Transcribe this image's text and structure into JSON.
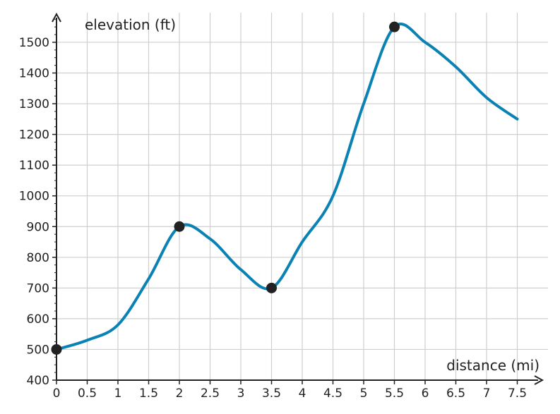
{
  "chart_data": {
    "type": "line",
    "xlabel": "distance (mi)",
    "ylabel": "elevation (ft)",
    "xlim": [
      0,
      7.5
    ],
    "ylim": [
      400,
      1500
    ],
    "x_ticks": [
      "0",
      "0.5",
      "1",
      "1.5",
      "2",
      "2.5",
      "3",
      "3.5",
      "4",
      "4.5",
      "5",
      "5.5",
      "6",
      "6.5",
      "7",
      "7.5"
    ],
    "y_ticks": [
      "400",
      "500",
      "600",
      "700",
      "800",
      "900",
      "1000",
      "1100",
      "1200",
      "1300",
      "1400",
      "1500"
    ],
    "grid": true,
    "series": [
      {
        "color": "#0a82b4",
        "points": [
          {
            "x": 0,
            "y": 500
          },
          {
            "x": 0.5,
            "y": 530
          },
          {
            "x": 1,
            "y": 580
          },
          {
            "x": 1.5,
            "y": 730
          },
          {
            "x": 2,
            "y": 900
          },
          {
            "x": 2.5,
            "y": 860
          },
          {
            "x": 3,
            "y": 760
          },
          {
            "x": 3.5,
            "y": 700
          },
          {
            "x": 4,
            "y": 850
          },
          {
            "x": 4.5,
            "y": 1000
          },
          {
            "x": 5,
            "y": 1300
          },
          {
            "x": 5.5,
            "y": 1550
          },
          {
            "x": 6,
            "y": 1500
          },
          {
            "x": 6.5,
            "y": 1420
          },
          {
            "x": 7,
            "y": 1320
          },
          {
            "x": 7.5,
            "y": 1250
          }
        ]
      }
    ],
    "markers": [
      {
        "x": 0,
        "y": 500
      },
      {
        "x": 2,
        "y": 900
      },
      {
        "x": 3.5,
        "y": 700
      },
      {
        "x": 5.5,
        "y": 1550
      }
    ],
    "marker_color": "#222222"
  }
}
